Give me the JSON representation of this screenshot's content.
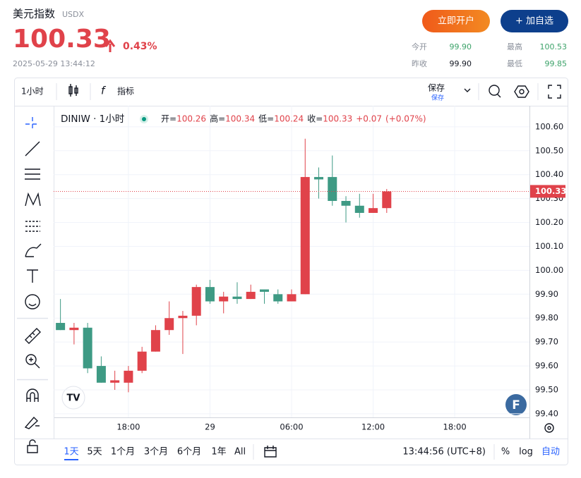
{
  "header": {
    "title": "美元指数",
    "symbol": "USDX",
    "price": 100.33,
    "change_pct": "0.43%",
    "datetime": "2025-05-29 13:44:12",
    "buttons": [
      "立即开户",
      "+ 加自选"
    ],
    "stats": [
      {
        "label": "今开",
        "value": "99.90"
      },
      {
        "label": "最高",
        "value": "100.53"
      },
      {
        "label": "昨收",
        "value": "99.90"
      },
      {
        "label": "最低",
        "value": "99.85"
      }
    ]
  },
  "toolbar": {
    "interval": "1小时",
    "indicators": "指标",
    "save": "保存",
    "save_sub": "保存"
  },
  "bottom_bar": {
    "ranges": [
      "1天",
      "5天",
      "1个月",
      "3个月",
      "6个月",
      "1年",
      "All"
    ],
    "time": "13:44:56 (UTC+8)",
    "options": [
      "%",
      "log",
      "自动"
    ]
  },
  "chart_data": {
    "type": "candlestick",
    "symbol_label": "DINIW · 1小时",
    "legend": [
      {
        "label": "开=",
        "value": 100.26
      },
      {
        "label": "高=",
        "value": 100.34
      },
      {
        "label": "低=",
        "value": 100.24
      },
      {
        "label": "收=",
        "value": 100.33
      }
    ],
    "change": "+0.07",
    "change_pct": "(+0.07%)",
    "up_color": "#e0424a",
    "down_color": "#3e9a84",
    "x": [
      0,
      1,
      2,
      3,
      4,
      5,
      6,
      7,
      8,
      9,
      10,
      11,
      12,
      13,
      14,
      15,
      16,
      17,
      18,
      19,
      20,
      21,
      22,
      23,
      24
    ],
    "open": [
      99.78,
      99.75,
      99.76,
      99.6,
      99.53,
      99.53,
      99.58,
      99.66,
      99.75,
      99.8,
      99.81,
      99.93,
      99.87,
      99.89,
      99.88,
      99.92,
      99.9,
      99.87,
      99.9,
      100.39,
      100.39,
      100.29,
      100.27,
      100.24,
      100.26
    ],
    "high": [
      99.88,
      99.78,
      99.78,
      99.64,
      99.58,
      99.6,
      99.68,
      99.77,
      99.87,
      99.83,
      99.94,
      99.96,
      99.91,
      99.95,
      99.94,
      99.92,
      99.92,
      99.92,
      100.55,
      100.43,
      100.48,
      100.31,
      100.32,
      100.32,
      100.34
    ],
    "low": [
      99.75,
      99.69,
      99.57,
      99.53,
      99.5,
      99.49,
      99.57,
      99.66,
      99.73,
      99.65,
      99.77,
      99.86,
      99.82,
      99.86,
      99.88,
      99.86,
      99.86,
      99.87,
      99.9,
      100.3,
      100.27,
      100.2,
      100.22,
      100.24,
      100.24
    ],
    "close": [
      99.75,
      99.76,
      99.59,
      99.53,
      99.54,
      99.58,
      99.66,
      99.75,
      99.8,
      99.81,
      99.93,
      99.87,
      99.89,
      99.88,
      99.91,
      99.91,
      99.87,
      99.9,
      100.39,
      100.38,
      100.29,
      100.27,
      100.24,
      100.26,
      100.33
    ],
    "xlim": [
      -0.5,
      34.5
    ],
    "xticks": [
      {
        "value": 5,
        "label": "18:00"
      },
      {
        "value": 11,
        "label": "29"
      },
      {
        "value": 17,
        "label": "06:00"
      },
      {
        "value": 23,
        "label": "12:00"
      },
      {
        "value": 29,
        "label": "18:00"
      }
    ],
    "ylim": [
      99.385,
      100.688
    ],
    "yticks": [
      {
        "value": 100.6,
        "label": "100.60"
      },
      {
        "value": 100.5,
        "label": "100.50"
      },
      {
        "value": 100.4,
        "label": "100.40"
      },
      {
        "value": 100.3,
        "label": "100.30"
      },
      {
        "value": 100.2,
        "label": "100.20"
      },
      {
        "value": 100.1,
        "label": "100.10"
      },
      {
        "value": 100.0,
        "label": "100.00"
      },
      {
        "value": 99.9,
        "label": "99.90"
      },
      {
        "value": 99.8,
        "label": "99.80"
      },
      {
        "value": 99.7,
        "label": "99.70"
      },
      {
        "value": 99.6,
        "label": "99.60"
      },
      {
        "value": 99.5,
        "label": "99.50"
      },
      {
        "value": 99.4,
        "label": "99.40"
      }
    ],
    "grid": true
  }
}
